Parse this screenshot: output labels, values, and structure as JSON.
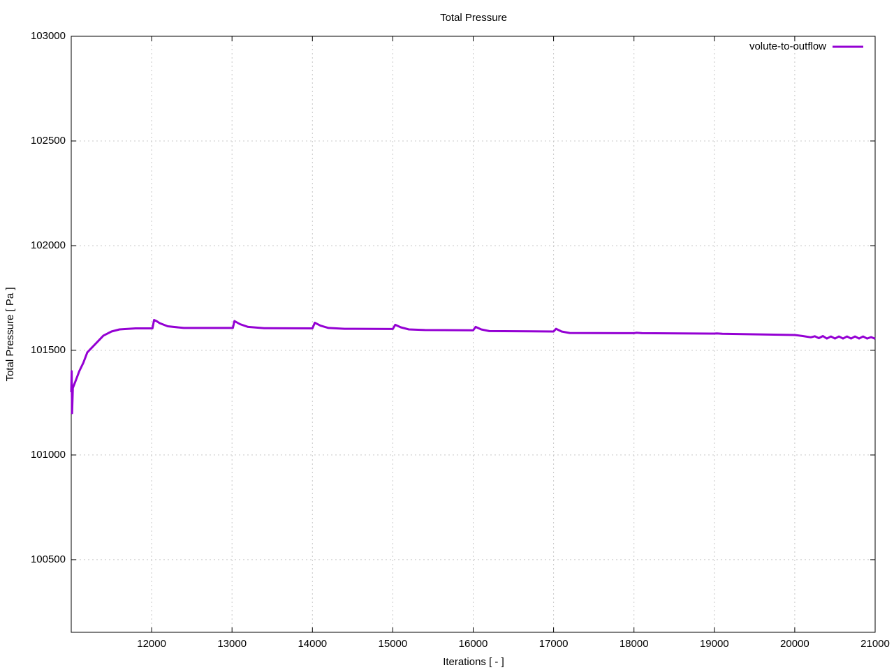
{
  "chart_data": {
    "type": "line",
    "title": "Total Pressure",
    "x_label": "Iterations [ - ]",
    "y_label": "Total Pressure [ Pa ]",
    "x": [
      11000,
      11005,
      11010,
      11020,
      11050,
      11100,
      11150,
      11200,
      11300,
      11400,
      11500,
      11600,
      11800,
      12000,
      12010,
      12030,
      12060,
      12100,
      12200,
      12400,
      13000,
      13010,
      13030,
      13100,
      13200,
      13400,
      14000,
      14030,
      14100,
      14200,
      14400,
      15000,
      15030,
      15100,
      15200,
      15400,
      16000,
      16030,
      16100,
      16200,
      17000,
      17030,
      17100,
      17200,
      18000,
      18030,
      18100,
      19000,
      19030,
      19100,
      20000,
      20100,
      20200,
      20250,
      20300,
      20350,
      20400,
      20450,
      20500,
      20550,
      20600,
      20650,
      20700,
      20750,
      20800,
      20850,
      20900,
      20950,
      21000
    ],
    "series": [
      {
        "name": "volute-to-outflow",
        "color": "#9400d3",
        "values": [
          101300,
          101400,
          101200,
          101320,
          101350,
          101400,
          101440,
          101490,
          101530,
          101570,
          101590,
          101600,
          101605,
          101605,
          101605,
          101645,
          101640,
          101630,
          101615,
          101607,
          101607,
          101607,
          101640,
          101625,
          101612,
          101606,
          101605,
          101632,
          101618,
          101607,
          101603,
          101602,
          101622,
          101610,
          101600,
          101597,
          101596,
          101612,
          101600,
          101592,
          101590,
          101603,
          101590,
          101583,
          101582,
          101584,
          101582,
          101580,
          101581,
          101579,
          101573,
          101568,
          101562,
          101567,
          101558,
          101568,
          101556,
          101566,
          101556,
          101566,
          101556,
          101566,
          101556,
          101566,
          101556,
          101566,
          101556,
          101563,
          101555
        ]
      }
    ],
    "xlim": [
      11000,
      21000
    ],
    "ylim": [
      100153,
      103000
    ],
    "xticks": [
      12000,
      13000,
      14000,
      15000,
      16000,
      17000,
      18000,
      19000,
      20000,
      21000
    ],
    "yticks": [
      100500,
      101000,
      101500,
      102000,
      102500,
      103000
    ],
    "grid": true,
    "legend": "top-right"
  }
}
